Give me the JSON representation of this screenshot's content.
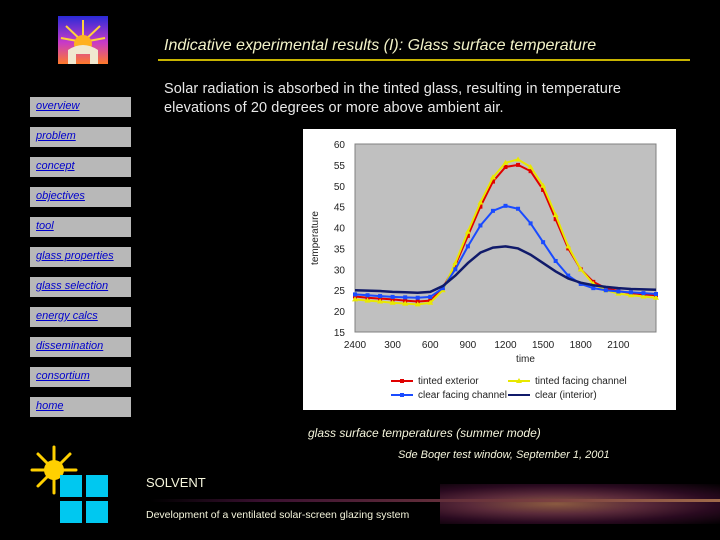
{
  "header": {
    "title": "Indicative experimental results (I): Glass surface temperature",
    "intro": "Solar radiation is absorbed in the tinted glass, resulting in temperature elevations of 20 degrees or more above ambient air."
  },
  "nav": {
    "items": [
      {
        "label": "overview"
      },
      {
        "label": "problem"
      },
      {
        "label": "concept"
      },
      {
        "label": "objectives"
      },
      {
        "label": "tool"
      },
      {
        "label": "glass properties"
      },
      {
        "label": "glass selection"
      },
      {
        "label": "energy calcs"
      },
      {
        "label": "dissemination"
      },
      {
        "label": "consortium"
      },
      {
        "label": "home"
      }
    ]
  },
  "chart_data": {
    "type": "line",
    "xlabel": "time",
    "ylabel": "temperature",
    "ylim": [
      15,
      60
    ],
    "yticks": [
      15,
      20,
      25,
      30,
      35,
      40,
      45,
      50,
      55,
      60
    ],
    "x_tick_labels": [
      "2400",
      "300",
      "600",
      "900",
      "1200",
      "1500",
      "1800",
      "2100"
    ],
    "x": [
      0,
      1,
      2,
      3,
      4,
      5,
      6,
      7,
      8,
      9,
      10,
      11,
      12,
      13,
      14,
      15,
      16,
      17,
      18,
      19,
      20,
      21,
      22,
      23,
      24
    ],
    "series": [
      {
        "name": "tinted exterior",
        "color": "#e00000",
        "marker": "square",
        "values": [
          23.5,
          23.2,
          23.0,
          22.8,
          22.5,
          22.3,
          22.5,
          25.5,
          31.0,
          38.0,
          45.0,
          51.0,
          54.5,
          55.0,
          53.5,
          49.0,
          42.0,
          35.0,
          30.0,
          27.0,
          25.5,
          24.8,
          24.3,
          24.0,
          23.8
        ]
      },
      {
        "name": "tinted facing channel",
        "color": "#e8e800",
        "marker": "triangle",
        "values": [
          22.8,
          22.5,
          22.3,
          22.0,
          21.8,
          21.6,
          22.0,
          25.0,
          31.5,
          39.0,
          46.0,
          52.0,
          55.5,
          56.3,
          54.5,
          50.0,
          43.0,
          35.5,
          30.0,
          26.5,
          25.0,
          24.2,
          23.8,
          23.5,
          23.2
        ]
      },
      {
        "name": "clear facing channel",
        "color": "#1a4bff",
        "marker": "square",
        "values": [
          24.0,
          23.8,
          23.6,
          23.4,
          23.3,
          23.2,
          23.4,
          25.5,
          30.0,
          35.5,
          40.5,
          44.0,
          45.2,
          44.5,
          41.0,
          36.5,
          32.0,
          28.5,
          26.5,
          25.5,
          25.0,
          24.7,
          24.5,
          24.3,
          24.1
        ]
      },
      {
        "name": "clear (interior)",
        "color": "#101a6a",
        "marker": "line",
        "values": [
          25.0,
          24.9,
          24.8,
          24.6,
          24.5,
          24.4,
          24.6,
          26.0,
          28.5,
          31.5,
          34.0,
          35.2,
          35.5,
          35.0,
          33.5,
          31.5,
          29.5,
          27.8,
          26.8,
          26.2,
          25.8,
          25.5,
          25.3,
          25.2,
          25.1
        ]
      }
    ],
    "plot_background": "#c0c0c0"
  },
  "captions": {
    "figure": "glass surface temperatures (summer mode)",
    "source": "Sde Boqer test window, September 1, 2001"
  },
  "footer": {
    "brand": "SOLVENT",
    "tagline": "Development of a ventilated solar-screen glazing system"
  }
}
